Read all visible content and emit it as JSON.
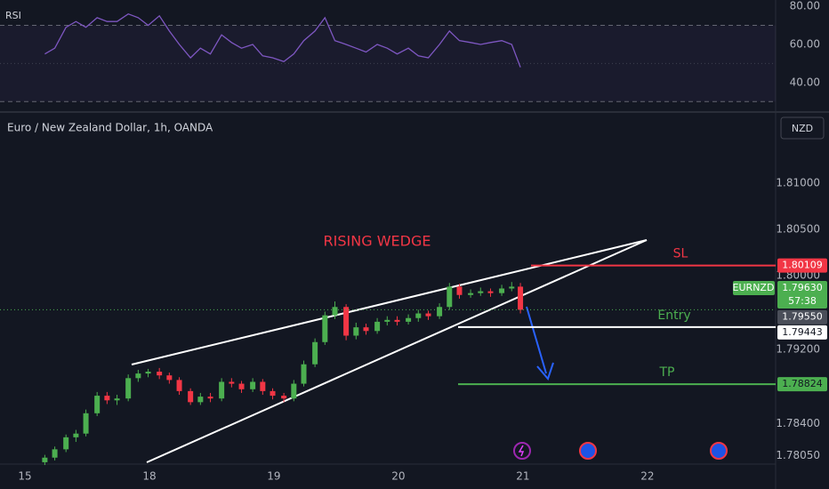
{
  "chart_data": {
    "type": "candlestick",
    "title": "Euro / New Zealand Dollar, 1h, OANDA",
    "currency": "NZD",
    "symbol": "EURNZD",
    "annotation": "RISING WEDGE",
    "up_color": "#4caf50",
    "down_color": "#f23645",
    "x": [
      0.16,
      0.24,
      0.33,
      0.41,
      0.49,
      0.58,
      0.66,
      0.74,
      0.83,
      0.91,
      0.99,
      1.08,
      1.16,
      1.24,
      1.33,
      1.41,
      1.49,
      1.58,
      1.66,
      1.74,
      1.83,
      1.91,
      1.99,
      2.08,
      2.16,
      2.24,
      2.33,
      2.41,
      2.49,
      2.58,
      2.66,
      2.74,
      2.83,
      2.91,
      2.99,
      3.08,
      3.16,
      3.24,
      3.33,
      3.41,
      3.49,
      3.58,
      3.66,
      3.74,
      3.83,
      3.91,
      3.98
    ],
    "candles": [
      [
        1.7798,
        1.7806,
        1.7795,
        1.7803
      ],
      [
        1.7803,
        1.7815,
        1.78,
        1.7812
      ],
      [
        1.7812,
        1.7828,
        1.7809,
        1.7825
      ],
      [
        1.7825,
        1.7833,
        1.782,
        1.7829
      ],
      [
        1.7829,
        1.7855,
        1.7826,
        1.7851
      ],
      [
        1.7851,
        1.7874,
        1.7848,
        1.787
      ],
      [
        1.787,
        1.7874,
        1.7861,
        1.7865
      ],
      [
        1.7865,
        1.7871,
        1.786,
        1.7867
      ],
      [
        1.7867,
        1.7893,
        1.7864,
        1.7889
      ],
      [
        1.7889,
        1.7898,
        1.7885,
        1.7894
      ],
      [
        1.7894,
        1.7899,
        1.789,
        1.7896
      ],
      [
        1.7896,
        1.79,
        1.7888,
        1.7892
      ],
      [
        1.7892,
        1.7895,
        1.7883,
        1.7887
      ],
      [
        1.7887,
        1.789,
        1.7871,
        1.7875
      ],
      [
        1.7875,
        1.7878,
        1.786,
        1.7863
      ],
      [
        1.7863,
        1.7873,
        1.786,
        1.7869
      ],
      [
        1.7869,
        1.7873,
        1.7863,
        1.7867
      ],
      [
        1.7867,
        1.7889,
        1.7864,
        1.7885
      ],
      [
        1.7885,
        1.7889,
        1.7879,
        1.7883
      ],
      [
        1.7883,
        1.7886,
        1.7873,
        1.7877
      ],
      [
        1.7877,
        1.7889,
        1.7874,
        1.7885
      ],
      [
        1.7885,
        1.7888,
        1.7871,
        1.7875
      ],
      [
        1.7875,
        1.7878,
        1.7866,
        1.787
      ],
      [
        1.787,
        1.7873,
        1.7863,
        1.7867
      ],
      [
        1.7867,
        1.7887,
        1.7864,
        1.7883
      ],
      [
        1.7883,
        1.7908,
        1.788,
        1.7904
      ],
      [
        1.7904,
        1.7932,
        1.7901,
        1.7928
      ],
      [
        1.7928,
        1.7961,
        1.7925,
        1.7957
      ],
      [
        1.7957,
        1.7972,
        1.7953,
        1.7966
      ],
      [
        1.7966,
        1.7969,
        1.793,
        1.7935
      ],
      [
        1.7935,
        1.7949,
        1.7931,
        1.7944
      ],
      [
        1.7944,
        1.7948,
        1.7936,
        1.794
      ],
      [
        1.794,
        1.7954,
        1.7937,
        1.795
      ],
      [
        1.795,
        1.7956,
        1.7946,
        1.7952
      ],
      [
        1.7952,
        1.7956,
        1.7946,
        1.795
      ],
      [
        1.795,
        1.7958,
        1.7947,
        1.7954
      ],
      [
        1.7954,
        1.7963,
        1.795,
        1.7959
      ],
      [
        1.7959,
        1.7962,
        1.7952,
        1.7956
      ],
      [
        1.7956,
        1.797,
        1.7953,
        1.7966
      ],
      [
        1.7966,
        1.7992,
        1.7963,
        1.7988
      ],
      [
        1.7988,
        1.7991,
        1.7975,
        1.7979
      ],
      [
        1.7979,
        1.7985,
        1.7976,
        1.7981
      ],
      [
        1.7981,
        1.7987,
        1.7978,
        1.7983
      ],
      [
        1.7983,
        1.7986,
        1.7977,
        1.7981
      ],
      [
        1.7981,
        1.799,
        1.7978,
        1.7986
      ],
      [
        1.7986,
        1.7993,
        1.7983,
        1.7988
      ],
      [
        1.7988,
        1.7992,
        1.7959,
        1.7963
      ]
    ],
    "last_price": {
      "value": 1.7963,
      "label": "1.79630"
    },
    "countdown": "57:38",
    "marker": {
      "value": 1.7955,
      "label": "1.79550"
    },
    "levels": [
      {
        "name": "SL",
        "value": 1.80109,
        "label": "1.80109",
        "color": "#f23645"
      },
      {
        "name": "Entry",
        "value": 1.79443,
        "label": "1.79443",
        "color": "#ffffff"
      },
      {
        "name": "TP",
        "value": 1.78824,
        "label": "1.78824",
        "color": "#4caf50"
      }
    ],
    "xlim": [
      -0.2,
      6.03
    ],
    "xticks": [
      {
        "value": 0,
        "label": "15"
      },
      {
        "value": 1,
        "label": "18"
      },
      {
        "value": 2,
        "label": "19"
      },
      {
        "value": 3,
        "label": "20"
      },
      {
        "value": 4,
        "label": "21"
      },
      {
        "value": 5,
        "label": "22"
      }
    ],
    "ylim": [
      1.7796,
      1.8175
    ],
    "yticks": [
      {
        "value": 1.81,
        "label": "1.81000"
      },
      {
        "value": 1.805,
        "label": "1.80500"
      },
      {
        "value": 1.8,
        "label": "1.80000"
      },
      {
        "value": 1.792,
        "label": "1.79200"
      },
      {
        "value": 1.784,
        "label": "1.78400"
      },
      {
        "value": 1.7805,
        "label": "1.78050"
      }
    ],
    "rsi": {
      "name": "RSI",
      "color": "#7e57c2",
      "values": [
        55,
        58,
        69,
        72,
        69,
        74,
        72,
        72,
        76,
        74,
        70,
        75,
        67,
        60,
        53,
        58,
        55,
        65,
        61,
        58,
        60,
        54,
        53,
        51,
        55,
        62,
        67,
        74,
        62,
        60,
        58,
        56,
        60,
        58,
        55,
        58,
        54,
        53,
        60,
        67,
        62,
        61,
        60,
        61,
        62,
        60,
        48
      ],
      "ylim": [
        25,
        83.3
      ],
      "yticks": [
        {
          "value": 80,
          "label": "80.00"
        },
        {
          "value": 60,
          "label": "60.00"
        },
        {
          "value": 40,
          "label": "40.00"
        }
      ],
      "levels": [
        70,
        50,
        30
      ]
    }
  }
}
